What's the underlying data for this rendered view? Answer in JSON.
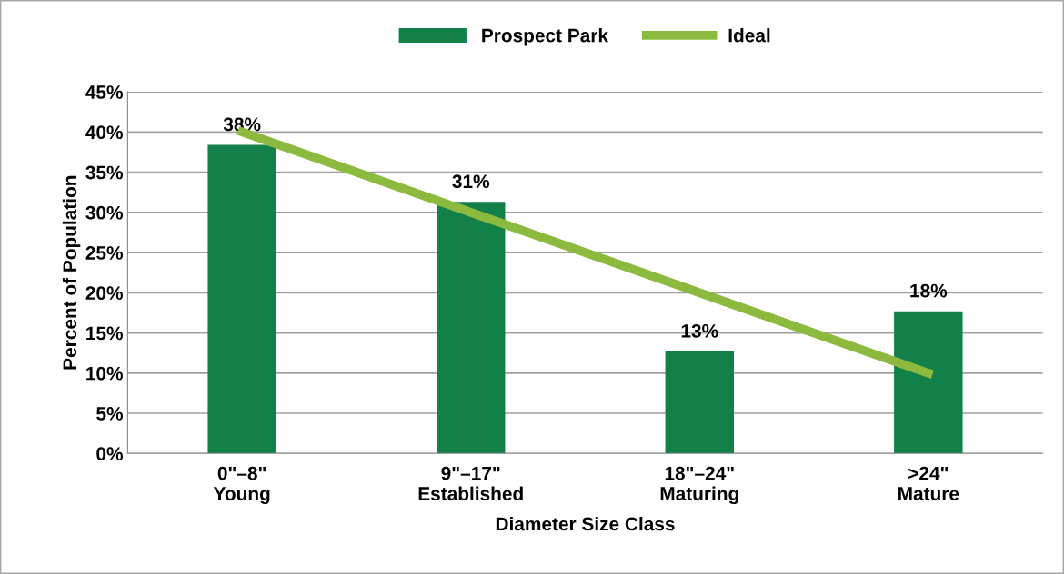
{
  "chart_data": {
    "type": "bar",
    "xlabel": "Diameter Size Class",
    "ylabel": "Percent of Population",
    "categories": [
      "0\"–8\"\nYoung",
      "9\"–17\"\nEstablished",
      "18\"–24\"\nMaturing",
      ">24\"\nMature"
    ],
    "series": [
      {
        "name": "Prospect Park",
        "color": "#138049",
        "values": [
          38.4,
          31.3,
          12.7,
          17.7
        ],
        "value_labels": [
          "38%",
          "31%",
          "13%",
          "18%"
        ]
      },
      {
        "name": "Ideal",
        "type": "line",
        "color": "#8bba3f",
        "values": [
          40,
          30,
          20,
          10
        ],
        "marker": "none"
      }
    ],
    "ylim": [
      0,
      45
    ],
    "yticks": [
      {
        "value": 0,
        "label": "0%"
      },
      {
        "value": 5,
        "label": "5%"
      },
      {
        "value": 10,
        "label": "10%"
      },
      {
        "value": 15,
        "label": "15%"
      },
      {
        "value": 20,
        "label": "20%"
      },
      {
        "value": 25,
        "label": "25%"
      },
      {
        "value": 30,
        "label": "30%"
      },
      {
        "value": 35,
        "label": "35%"
      },
      {
        "value": 40,
        "label": "40%"
      },
      {
        "value": 45,
        "label": "45%"
      }
    ],
    "grid": "y",
    "legend": "top"
  }
}
